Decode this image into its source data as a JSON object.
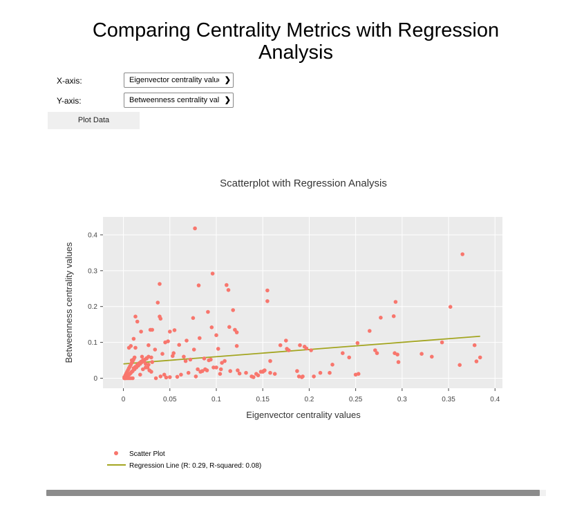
{
  "page": {
    "title": "Comparing Centrality Metrics with Regression Analysis"
  },
  "controls": {
    "x_label": "X-axis:",
    "x_selected": "Eigenvector centrality values",
    "y_label": "Y-axis:",
    "y_selected": "Betweenness centrality values",
    "plot_button": "Plot Data",
    "dropdown_icon": "chevron-down-icon"
  },
  "colors": {
    "scatter": "#f8766d",
    "regression": "#a3a520",
    "plot_bg": "#ebebeb",
    "grid": "#ffffff"
  },
  "chart_data": {
    "type": "scatter",
    "title": "Scatterplot with Regression Analysis",
    "xlabel": "Eigenvector centrality values",
    "ylabel": "Betweenness centrality values",
    "xlim": [
      -0.022,
      0.408
    ],
    "ylim": [
      -0.028,
      0.45
    ],
    "x_ticks": [
      0,
      0.05,
      0.1,
      0.15,
      0.2,
      0.25,
      0.3,
      0.35,
      0.4
    ],
    "x_tick_labels": [
      "0",
      "0.05",
      "0.1",
      "0.15",
      "0.2",
      "0.25",
      "0.3",
      "0.35",
      "0.4"
    ],
    "y_ticks": [
      0,
      0.1,
      0.2,
      0.3,
      0.4
    ],
    "y_tick_labels": [
      "0",
      "0.1",
      "0.2",
      "0.3",
      "0.4"
    ],
    "grid": true,
    "legend_position": "bottom-left",
    "series": [
      {
        "name": "Scatter Plot",
        "mode": "markers",
        "x": [
          0.077,
          0.365,
          0.096,
          0.039,
          0.081,
          0.111,
          0.155,
          0.113,
          0.155,
          0.037,
          0.293,
          0.352,
          0.013,
          0.039,
          0.04,
          0.091,
          0.277,
          0.015,
          0.291,
          0.075,
          0.114,
          0.118,
          0.095,
          0.12,
          0.265,
          0.019,
          0.122,
          0.055,
          0.011,
          0.029,
          0.031,
          0.082,
          0.1,
          0.008,
          0.006,
          0.027,
          0.045,
          0.013,
          0.02,
          0.025,
          0.009,
          0.03,
          0.065,
          0.068,
          0.053,
          0.054,
          0.175,
          0.169,
          0.19,
          0.195,
          0.176,
          0.343,
          0.378,
          0.252,
          0.072,
          0.076,
          0.087,
          0.092,
          0.094,
          0.102,
          0.106,
          0.109,
          0.122,
          0.158,
          0.178,
          0.197,
          0.202,
          0.225,
          0.236,
          0.243,
          0.271,
          0.273,
          0.295,
          0.296,
          0.321,
          0.332,
          0.362,
          0.38,
          0.384,
          0.002,
          0.004,
          0.006,
          0.008,
          0.01,
          0.012,
          0.014,
          0.016,
          0.018,
          0.02,
          0.022,
          0.024,
          0.026,
          0.028,
          0.03,
          0.003,
          0.005,
          0.007,
          0.009,
          0.011,
          0.013,
          0.015,
          0.017,
          0.019,
          0.021,
          0.023,
          0.025,
          0.027,
          0.001,
          0.002,
          0.003,
          0.004,
          0.005,
          0.006,
          0.007,
          0.008,
          0.009,
          0.01,
          0.011,
          0.012,
          0.001,
          0.002,
          0.004,
          0.006,
          0.008,
          0.01,
          0.035,
          0.04,
          0.046,
          0.05,
          0.058,
          0.062,
          0.07,
          0.078,
          0.083,
          0.088,
          0.097,
          0.105,
          0.115,
          0.125,
          0.132,
          0.14,
          0.145,
          0.148,
          0.151,
          0.152,
          0.158,
          0.163,
          0.187,
          0.192,
          0.205,
          0.212,
          0.222,
          0.25,
          0.253,
          0.292,
          0.048,
          0.05,
          0.06,
          0.067,
          0.08,
          0.085,
          0.09,
          0.1,
          0.104,
          0.123,
          0.138,
          0.143,
          0.15,
          0.189,
          0.193,
          0.034,
          0.042,
          0.044,
          0.031,
          0.027,
          0.024,
          0.021,
          0.018
        ],
        "y": [
          0.418,
          0.346,
          0.292,
          0.263,
          0.259,
          0.26,
          0.245,
          0.246,
          0.215,
          0.211,
          0.213,
          0.199,
          0.172,
          0.172,
          0.166,
          0.185,
          0.169,
          0.158,
          0.173,
          0.168,
          0.143,
          0.19,
          0.142,
          0.135,
          0.132,
          0.13,
          0.128,
          0.134,
          0.11,
          0.135,
          0.135,
          0.112,
          0.12,
          0.09,
          0.085,
          0.092,
          0.1,
          0.085,
          0.06,
          0.055,
          0.05,
          0.058,
          0.06,
          0.105,
          0.062,
          0.07,
          0.105,
          0.092,
          0.092,
          0.088,
          0.082,
          0.1,
          0.092,
          0.098,
          0.052,
          0.08,
          0.055,
          0.05,
          0.052,
          0.082,
          0.043,
          0.048,
          0.09,
          0.048,
          0.078,
          0.083,
          0.078,
          0.038,
          0.07,
          0.058,
          0.078,
          0.07,
          0.066,
          0.045,
          0.068,
          0.06,
          0.037,
          0.047,
          0.058,
          0.0,
          0.005,
          0.01,
          0.015,
          0.02,
          0.025,
          0.03,
          0.035,
          0.04,
          0.045,
          0.048,
          0.04,
          0.03,
          0.022,
          0.018,
          0.002,
          0.008,
          0.012,
          0.018,
          0.028,
          0.032,
          0.038,
          0.042,
          0.046,
          0.05,
          0.052,
          0.056,
          0.06,
          0.003,
          0.008,
          0.013,
          0.018,
          0.023,
          0.028,
          0.033,
          0.038,
          0.043,
          0.048,
          0.053,
          0.058,
          0.0,
          0.0,
          0.0,
          0.0,
          0.0,
          0.0,
          0.0,
          0.005,
          0.002,
          0.003,
          0.004,
          0.01,
          0.015,
          0.005,
          0.018,
          0.025,
          0.03,
          0.025,
          0.02,
          0.013,
          0.015,
          0.003,
          0.008,
          0.018,
          0.02,
          0.022,
          0.015,
          0.012,
          0.02,
          0.003,
          0.005,
          0.015,
          0.015,
          0.01,
          0.012,
          0.07,
          0.103,
          0.13,
          0.093,
          0.048,
          0.025,
          0.02,
          0.022,
          0.03,
          0.012,
          0.022,
          0.005,
          0.012,
          0.018,
          0.005,
          0.005,
          0.08,
          0.068,
          0.01,
          0.045,
          0.038,
          0.03,
          0.025,
          0.01
        ]
      },
      {
        "name": "Regression Line (R: 0.29, R-squared: 0.08)",
        "mode": "line",
        "x": [
          0.0,
          0.384
        ],
        "y": [
          0.04,
          0.117
        ]
      }
    ]
  }
}
